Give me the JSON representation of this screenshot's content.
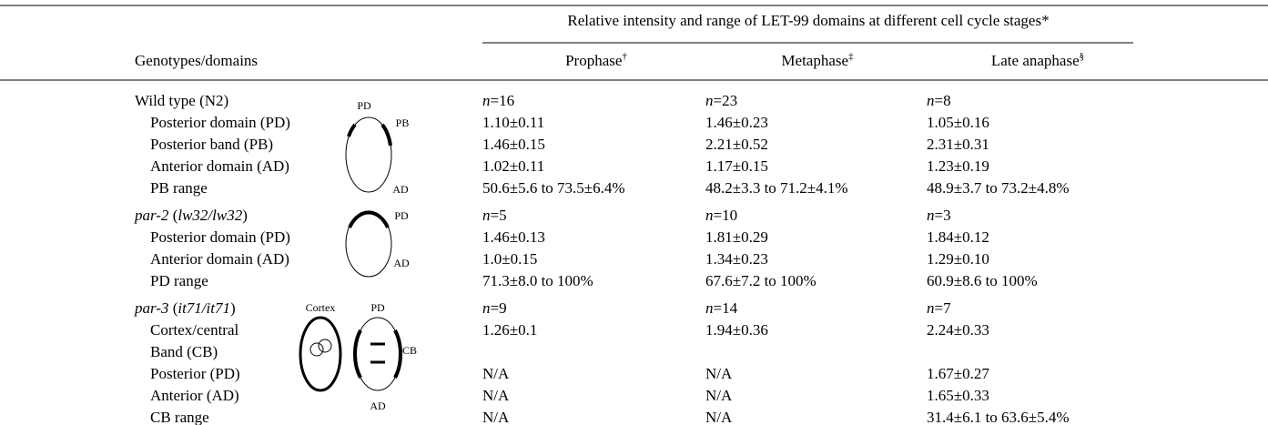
{
  "header": {
    "span_title": "Relative intensity and range of LET-99 domains at different cell cycle stages*",
    "row_header": "Genotypes/domains",
    "columns": [
      {
        "text": "Prophase",
        "mark": "†"
      },
      {
        "text": "Metaphase",
        "mark": "‡"
      },
      {
        "text": "Late anaphase",
        "mark": "§"
      }
    ]
  },
  "groups": [
    {
      "genotype": "Wild type (N2)",
      "counts": [
        [
          {
            "text": "n",
            "italic": true
          },
          {
            "text": "=16"
          }
        ],
        [
          {
            "text": "n",
            "italic": true
          },
          {
            "text": "=23"
          }
        ],
        [
          {
            "text": "n",
            "italic": true
          },
          {
            "text": "=8"
          }
        ]
      ],
      "diagram_labels": [
        "PD",
        "PB",
        "AD"
      ],
      "rows": [
        {
          "label": "Posterior domain (PD)",
          "values": [
            "1.10±0.11",
            "1.46±0.23",
            "1.05±0.16"
          ]
        },
        {
          "label": "Posterior band (PB)",
          "values": [
            "1.46±0.15",
            "2.21±0.52",
            "2.31±0.31"
          ]
        },
        {
          "label": "Anterior domain (AD)",
          "values": [
            "1.02±0.11",
            "1.17±0.15",
            "1.23±0.19"
          ]
        },
        {
          "label": "PB range",
          "values": [
            "50.6±5.6 to 73.5±6.4%",
            "48.2±3.3 to 71.2±4.1%",
            "48.9±3.7 to 73.2±4.8%"
          ]
        }
      ]
    },
    {
      "genotype": [
        {
          "text": "par-2",
          "italic": true
        },
        {
          "text": " ("
        },
        {
          "text": "lw32/lw32",
          "italic": true
        },
        {
          "text": ")"
        }
      ],
      "counts": [
        [
          {
            "text": "n",
            "italic": true
          },
          {
            "text": "=5"
          }
        ],
        [
          {
            "text": "n",
            "italic": true
          },
          {
            "text": "=10"
          }
        ],
        [
          {
            "text": "n",
            "italic": true
          },
          {
            "text": "=3"
          }
        ]
      ],
      "diagram_labels": [
        "PD",
        "AD"
      ],
      "rows": [
        {
          "label": "Posterior domain (PD)",
          "values": [
            "1.46±0.13",
            "1.81±0.29",
            "1.84±0.12"
          ]
        },
        {
          "label": "Anterior domain (AD)",
          "values": [
            "1.0±0.15",
            "1.34±0.23",
            "1.29±0.10"
          ]
        },
        {
          "label": "PD range",
          "values": [
            "71.3±8.0 to 100%",
            "67.6±7.2 to 100%",
            "60.9±8.6 to 100%"
          ]
        }
      ]
    },
    {
      "genotype": [
        {
          "text": "par-3",
          "italic": true
        },
        {
          "text": " ("
        },
        {
          "text": "it71/it71",
          "italic": true
        },
        {
          "text": ")"
        }
      ],
      "counts": [
        [
          {
            "text": "n",
            "italic": true
          },
          {
            "text": "=9"
          }
        ],
        [
          {
            "text": "n",
            "italic": true
          },
          {
            "text": "=14"
          }
        ],
        [
          {
            "text": "n",
            "italic": true
          },
          {
            "text": "=7"
          }
        ]
      ],
      "diagram_labels": [
        "Cortex",
        "PD",
        "CB",
        "AD"
      ],
      "rows": [
        {
          "label": "Cortex/central",
          "values": [
            "1.26±0.1",
            "1.94±0.36",
            "2.24±0.33"
          ]
        },
        {
          "label": "Band (CB)",
          "values": []
        },
        {
          "label": "Posterior (PD)",
          "values": [
            "N/A",
            "N/A",
            "1.67±0.27"
          ]
        },
        {
          "label": "Anterior (AD)",
          "values": [
            "N/A",
            "N/A",
            "1.65±0.33"
          ]
        },
        {
          "label": "CB range",
          "values": [
            "N/A",
            "N/A",
            "31.4±6.1 to 63.6±5.4%"
          ]
        }
      ]
    }
  ]
}
